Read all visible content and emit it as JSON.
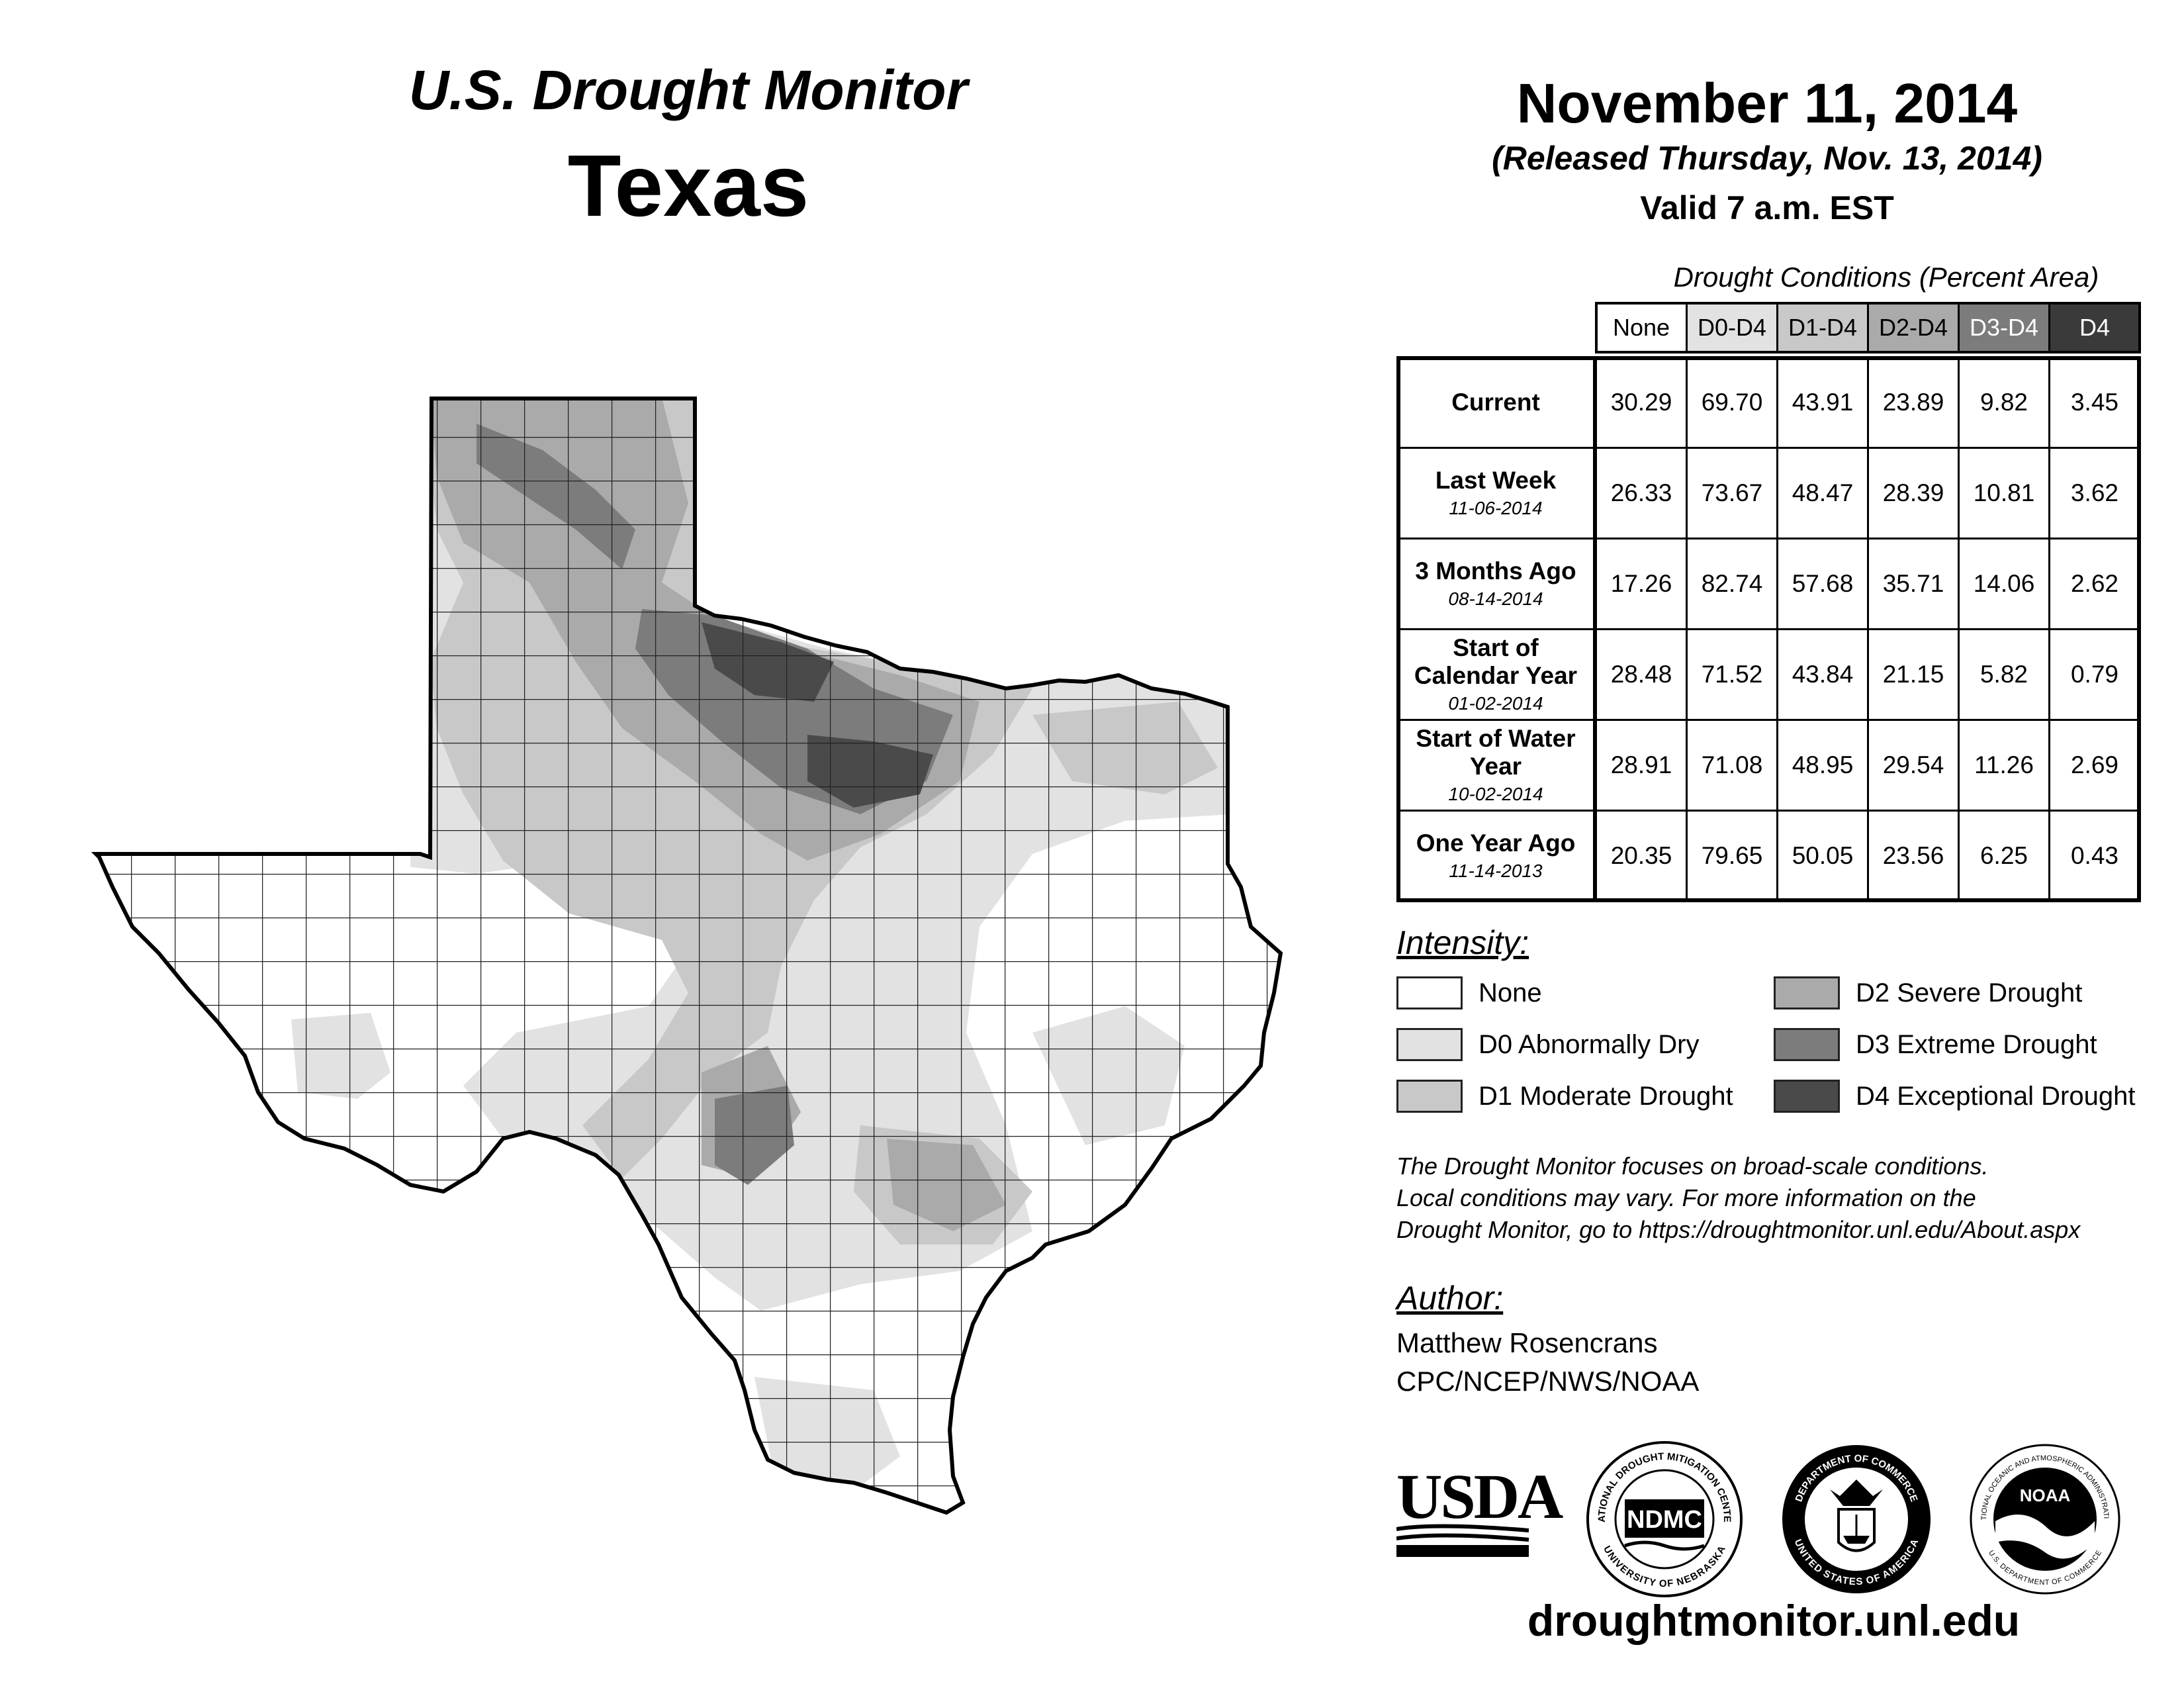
{
  "header": {
    "title_top": "U.S. Drought Monitor",
    "title_state": "Texas",
    "date": "November 11, 2014",
    "released": "(Released Thursday, Nov. 13, 2014)",
    "valid": "Valid 7 a.m. EST"
  },
  "table": {
    "caption": "Drought Conditions (Percent Area)",
    "columns": [
      "None",
      "D0-D4",
      "D1-D4",
      "D2-D4",
      "D3-D4",
      "D4"
    ],
    "rows": [
      {
        "label": "Current",
        "date": "",
        "values": [
          "30.29",
          "69.70",
          "43.91",
          "23.89",
          "9.82",
          "3.45"
        ]
      },
      {
        "label": "Last Week",
        "date": "11-06-2014",
        "values": [
          "26.33",
          "73.67",
          "48.47",
          "28.39",
          "10.81",
          "3.62"
        ]
      },
      {
        "label": "3 Months Ago",
        "date": "08-14-2014",
        "values": [
          "17.26",
          "82.74",
          "57.68",
          "35.71",
          "14.06",
          "2.62"
        ]
      },
      {
        "label": "Start of Calendar Year",
        "date": "01-02-2014",
        "values": [
          "28.48",
          "71.52",
          "43.84",
          "21.15",
          "5.82",
          "0.79"
        ]
      },
      {
        "label": "Start of Water Year",
        "date": "10-02-2014",
        "values": [
          "28.91",
          "71.08",
          "48.95",
          "29.54",
          "11.26",
          "2.69"
        ]
      },
      {
        "label": "One Year Ago",
        "date": "11-14-2013",
        "values": [
          "20.35",
          "79.65",
          "50.05",
          "23.56",
          "6.25",
          "0.43"
        ]
      }
    ]
  },
  "legend": {
    "title": "Intensity:",
    "items": [
      {
        "label": "None",
        "color": "#ffffff"
      },
      {
        "label": "D0 Abnormally Dry",
        "color": "#e2e2e2"
      },
      {
        "label": "D1 Moderate Drought",
        "color": "#c8c8c8"
      },
      {
        "label": "D2 Severe Drought",
        "color": "#aaaaaa"
      },
      {
        "label": "D3 Extreme Drought",
        "color": "#7c7c7c"
      },
      {
        "label": "D4 Exceptional Drought",
        "color": "#4a4a4a"
      }
    ]
  },
  "disclaimer": [
    "The Drought Monitor focuses on broad-scale conditions.",
    "Local conditions may vary. For more information on the",
    "Drought Monitor, go to https://droughtmonitor.unl.edu/About.aspx"
  ],
  "author": {
    "heading": "Author:",
    "name": "Matthew Rosencrans",
    "org": "CPC/NCEP/NWS/NOAA"
  },
  "logos": {
    "usda": "USDA",
    "ndmc": "NDMC",
    "ndmc_ring_top": "NATIONAL DROUGHT MITIGATION CENTER",
    "ndmc_ring_bottom": "UNIVERSITY OF NEBRASKA",
    "doc_ring_top": "DEPARTMENT OF COMMERCE",
    "doc_ring_bottom": "UNITED STATES OF AMERICA",
    "noaa": "NOAA",
    "noaa_ring_top": "NATIONAL OCEANIC AND ATMOSPHERIC ADMINISTRATION",
    "noaa_ring_bottom": "U.S. DEPARTMENT OF COMMERCE"
  },
  "footer_url": "droughtmonitor.unl.edu"
}
